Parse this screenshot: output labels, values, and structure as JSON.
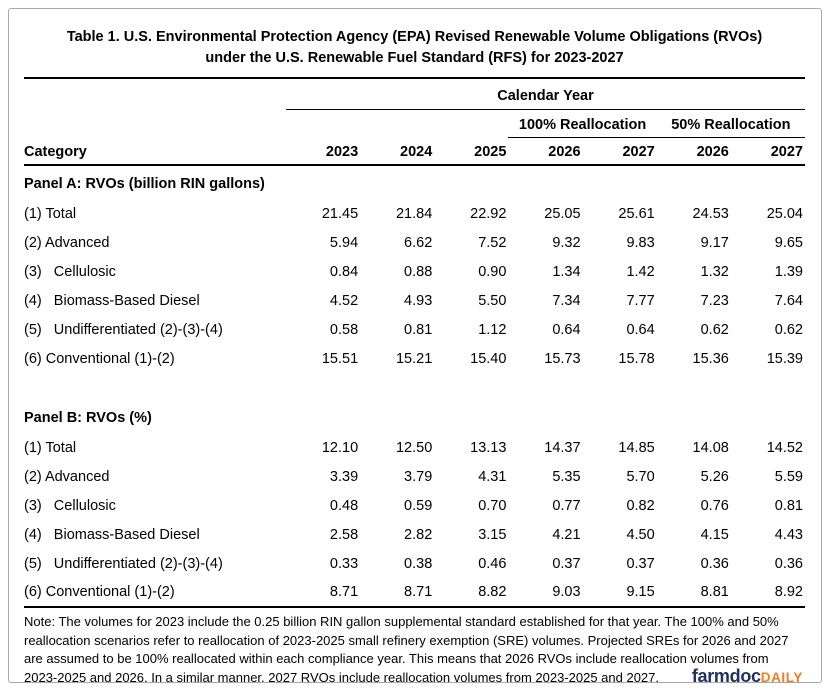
{
  "title": {
    "line1": "Table 1. U.S. Environmental Protection Agency (EPA) Revised Renewable Volume Obligations (RVOs)",
    "line2": "under the U.S. Renewable Fuel Standard (RFS) for 2023-2027"
  },
  "table": {
    "calendar_year_label": "Calendar Year",
    "realloc_100_label": "100% Reallocation",
    "realloc_50_label": "50% Reallocation",
    "category_label": "Category",
    "years": [
      "2023",
      "2024",
      "2025",
      "2026",
      "2027",
      "2026",
      "2027"
    ],
    "panels": [
      {
        "heading": "Panel A: RVOs (billion RIN gallons)",
        "rows": [
          {
            "label": "(1) Total",
            "values": [
              "21.45",
              "21.84",
              "22.92",
              "25.05",
              "25.61",
              "24.53",
              "25.04"
            ]
          },
          {
            "label": "(2) Advanced",
            "values": [
              "5.94",
              "6.62",
              "7.52",
              "9.32",
              "9.83",
              "9.17",
              "9.65"
            ]
          },
          {
            "label": "(3)   Cellulosic",
            "values": [
              "0.84",
              "0.88",
              "0.90",
              "1.34",
              "1.42",
              "1.32",
              "1.39"
            ]
          },
          {
            "label": "(4)   Biomass-Based Diesel",
            "values": [
              "4.52",
              "4.93",
              "5.50",
              "7.34",
              "7.77",
              "7.23",
              "7.64"
            ]
          },
          {
            "label": "(5)   Undifferentiated (2)-(3)-(4)",
            "values": [
              "0.58",
              "0.81",
              "1.12",
              "0.64",
              "0.64",
              "0.62",
              "0.62"
            ]
          },
          {
            "label": "(6) Conventional (1)-(2)",
            "values": [
              "15.51",
              "15.21",
              "15.40",
              "15.73",
              "15.78",
              "15.36",
              "15.39"
            ]
          }
        ]
      },
      {
        "heading": "Panel B: RVOs (%)",
        "rows": [
          {
            "label": "(1) Total",
            "values": [
              "12.10",
              "12.50",
              "13.13",
              "14.37",
              "14.85",
              "14.08",
              "14.52"
            ]
          },
          {
            "label": "(2) Advanced",
            "values": [
              "3.39",
              "3.79",
              "4.31",
              "5.35",
              "5.70",
              "5.26",
              "5.59"
            ]
          },
          {
            "label": "(3)   Cellulosic",
            "values": [
              "0.48",
              "0.59",
              "0.70",
              "0.77",
              "0.82",
              "0.76",
              "0.81"
            ]
          },
          {
            "label": "(4)   Biomass-Based Diesel",
            "values": [
              "2.58",
              "2.82",
              "3.15",
              "4.21",
              "4.50",
              "4.15",
              "4.43"
            ]
          },
          {
            "label": "(5)   Undifferentiated (2)-(3)-(4)",
            "values": [
              "0.33",
              "0.38",
              "0.46",
              "0.37",
              "0.37",
              "0.36",
              "0.36"
            ]
          },
          {
            "label": "(6) Conventional (1)-(2)",
            "values": [
              "8.71",
              "8.71",
              "8.82",
              "9.03",
              "9.15",
              "8.81",
              "8.92"
            ]
          }
        ]
      }
    ]
  },
  "note": "Note: The volumes for 2023 include the 0.25 billion RIN gallon supplemental standard established for that year. The 100% and 50% reallocation scenarios refer to reallocation of 2023-2025 small refinery exemption (SRE) volumes.  Projected SREs for 2026 and 2027 are assumed to be 100% reallocated within each compliance year.  This means that 2026 RVOs include reallocation volumes from 2023-2025 and 2026.  In a similar manner, 2027 RVOs include reallocation volumes from 2023-2025 and 2027.",
  "logo": {
    "farmdoc": "farmdoc",
    "daily": "DAILY",
    "navy_color": "#1f3160",
    "orange_color": "#f47b20"
  },
  "colors": {
    "rule": "#000000",
    "outer_border": "#a9a9a9",
    "background": "#ffffff"
  },
  "chart_data": {
    "type": "table",
    "title": "Table 1. U.S. Environmental Protection Agency (EPA) Revised Renewable Volume Obligations (RVOs) under the U.S. Renewable Fuel Standard (RFS) for 2023-2027",
    "columns": [
      "Category",
      "2023",
      "2024",
      "2025",
      "2026 (100% Reallocation)",
      "2027 (100% Reallocation)",
      "2026 (50% Reallocation)",
      "2027 (50% Reallocation)"
    ],
    "sections": [
      {
        "name": "Panel A: RVOs (billion RIN gallons)",
        "rows": [
          [
            "(1) Total",
            21.45,
            21.84,
            22.92,
            25.05,
            25.61,
            24.53,
            25.04
          ],
          [
            "(2) Advanced",
            5.94,
            6.62,
            7.52,
            9.32,
            9.83,
            9.17,
            9.65
          ],
          [
            "(3) Cellulosic",
            0.84,
            0.88,
            0.9,
            1.34,
            1.42,
            1.32,
            1.39
          ],
          [
            "(4) Biomass-Based Diesel",
            4.52,
            4.93,
            5.5,
            7.34,
            7.77,
            7.23,
            7.64
          ],
          [
            "(5) Undifferentiated (2)-(3)-(4)",
            0.58,
            0.81,
            1.12,
            0.64,
            0.64,
            0.62,
            0.62
          ],
          [
            "(6) Conventional (1)-(2)",
            15.51,
            15.21,
            15.4,
            15.73,
            15.78,
            15.36,
            15.39
          ]
        ]
      },
      {
        "name": "Panel B: RVOs (%)",
        "rows": [
          [
            "(1) Total",
            12.1,
            12.5,
            13.13,
            14.37,
            14.85,
            14.08,
            14.52
          ],
          [
            "(2) Advanced",
            3.39,
            3.79,
            4.31,
            5.35,
            5.7,
            5.26,
            5.59
          ],
          [
            "(3) Cellulosic",
            0.48,
            0.59,
            0.7,
            0.77,
            0.82,
            0.76,
            0.81
          ],
          [
            "(4) Biomass-Based Diesel",
            2.58,
            2.82,
            3.15,
            4.21,
            4.5,
            4.15,
            4.43
          ],
          [
            "(5) Undifferentiated (2)-(3)-(4)",
            0.33,
            0.38,
            0.46,
            0.37,
            0.37,
            0.36,
            0.36
          ],
          [
            "(6) Conventional (1)-(2)",
            8.71,
            8.71,
            8.82,
            9.03,
            9.15,
            8.81,
            8.92
          ]
        ]
      }
    ]
  }
}
